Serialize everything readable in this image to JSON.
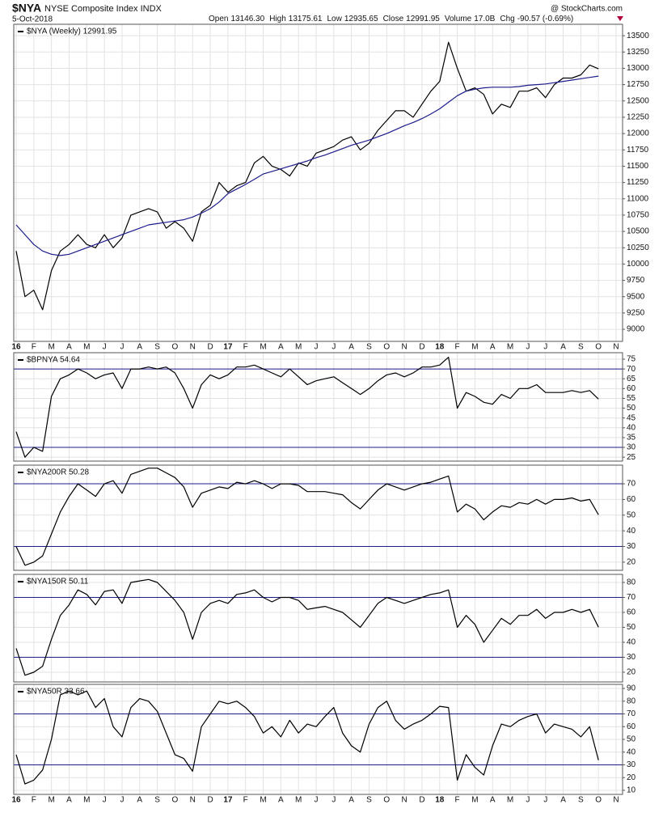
{
  "header": {
    "symbol": "$NYA",
    "name": "NYSE Composite Index INDX",
    "date": "5-Oct-2018",
    "source": "@ StockCharts.com",
    "quote": [
      {
        "label": "Open",
        "value": "13146.30"
      },
      {
        "label": "High",
        "value": "13175.61"
      },
      {
        "label": "Low",
        "value": "12935.65"
      },
      {
        "label": "Close",
        "value": "12991.95"
      },
      {
        "label": "Volume",
        "value": "17.0B"
      },
      {
        "label": "Chg",
        "value": "-90.57 (-0.69%)"
      }
    ]
  },
  "chart_data": [
    {
      "type": "line",
      "legend": "$NYA (Weekly) 12991.95",
      "categories": [
        "16",
        null,
        "F",
        null,
        "M",
        null,
        "A",
        null,
        "M",
        null,
        "J",
        null,
        "J",
        null,
        "A",
        null,
        "S",
        null,
        "O",
        null,
        "N",
        null,
        "D",
        null,
        "17",
        null,
        "F",
        null,
        "M",
        null,
        "A",
        null,
        "M",
        null,
        "J",
        null,
        "J",
        null,
        "A",
        null,
        "S",
        null,
        "O",
        null,
        "N",
        null,
        "D",
        null,
        "18",
        null,
        "F",
        null,
        "M",
        null,
        "A",
        null,
        "M",
        null,
        "J",
        null,
        "J",
        null,
        "A",
        null,
        "S",
        null,
        "O",
        null,
        "N"
      ],
      "ylim": [
        8815,
        13675
      ],
      "yticks": [
        9000,
        9250,
        9500,
        9750,
        10000,
        10250,
        10500,
        10750,
        11000,
        11250,
        11500,
        11750,
        12000,
        12250,
        12500,
        12750,
        13000,
        13250,
        13500
      ],
      "grid": true,
      "series": [
        {
          "color": "#000000",
          "values": [
            10200,
            9500,
            9600,
            9300,
            9900,
            10200,
            10300,
            10450,
            10300,
            10250,
            10450,
            10250,
            10400,
            10750,
            10800,
            10850,
            10800,
            10550,
            10650,
            10550,
            10350,
            10800,
            10900,
            11250,
            11100,
            11200,
            11250,
            11550,
            11650,
            11500,
            11450,
            11350,
            11550,
            11500,
            11700,
            11750,
            11800,
            11900,
            11950,
            11750,
            11850,
            12050,
            12200,
            12350,
            12350,
            12250,
            12450,
            12650,
            12800,
            13400,
            13000,
            12650,
            12700,
            12600,
            12300,
            12450,
            12400,
            12650,
            12650,
            12700,
            12550,
            12750,
            12850,
            12850,
            12900,
            13050,
            12992,
            null,
            null
          ]
        },
        {
          "color": "#1c1c8c",
          "values": [
            10600,
            10450,
            10300,
            10200,
            10150,
            10130,
            10150,
            10200,
            10250,
            10300,
            10350,
            10400,
            10450,
            10500,
            10550,
            10600,
            10620,
            10640,
            10660,
            10680,
            10720,
            10780,
            10850,
            10950,
            11080,
            11150,
            11220,
            11300,
            11380,
            11420,
            11460,
            11500,
            11540,
            11580,
            11630,
            11670,
            11720,
            11770,
            11820,
            11860,
            11900,
            11950,
            12000,
            12060,
            12120,
            12170,
            12230,
            12300,
            12380,
            12480,
            12580,
            12650,
            12680,
            12700,
            12710,
            12710,
            12710,
            12720,
            12740,
            12750,
            12760,
            12780,
            12800,
            12820,
            12840,
            12860,
            12880,
            null,
            null
          ]
        }
      ]
    },
    {
      "type": "line",
      "legend": "$BPNYA 54.64",
      "ylim": [
        23,
        78.3
      ],
      "yticks": [
        25,
        30,
        35,
        40,
        45,
        50,
        55,
        60,
        65,
        70,
        75
      ],
      "grid": true,
      "hlines": [
        30,
        70
      ],
      "hline_color": "#1c1c8c",
      "series": [
        {
          "color": "#000000",
          "values": [
            38,
            25,
            30,
            28,
            56,
            65,
            67,
            70,
            68,
            65,
            67,
            68,
            60,
            70,
            70,
            71,
            70,
            71,
            68,
            60,
            50,
            62,
            67,
            65,
            67,
            71,
            71,
            72,
            70,
            68,
            66,
            70,
            66,
            62,
            64,
            65,
            66,
            63,
            60,
            57,
            60,
            64,
            67,
            68,
            66,
            68,
            71,
            71,
            72,
            76,
            50,
            58,
            56,
            53,
            52,
            57,
            55,
            60,
            60,
            62,
            58,
            58,
            58,
            59,
            58,
            59,
            54.64,
            null,
            null
          ]
        }
      ]
    },
    {
      "type": "line",
      "legend": "$NYA200R 50.28",
      "ylim": [
        14.8,
        81.9
      ],
      "yticks": [
        20,
        30,
        40,
        50,
        60,
        70
      ],
      "grid": true,
      "hlines": [
        30,
        70
      ],
      "hline_color": "#1c1c8c",
      "series": [
        {
          "color": "#000000",
          "values": [
            30,
            18,
            20,
            24,
            38,
            52,
            62,
            70,
            66,
            62,
            70,
            72,
            64,
            76,
            78,
            80,
            80,
            77,
            74,
            68,
            55,
            64,
            66,
            68,
            67,
            71,
            70,
            72,
            70,
            67,
            70,
            70,
            69,
            65,
            65,
            65,
            64,
            63,
            58,
            54,
            60,
            66,
            70,
            68,
            66,
            68,
            70,
            71,
            73,
            75,
            52,
            57,
            54,
            47,
            52,
            56,
            55,
            58,
            57,
            60,
            57,
            60,
            60,
            61,
            59,
            60,
            50.28,
            null,
            null
          ]
        }
      ]
    },
    {
      "type": "line",
      "legend": "$NYA150R 50.11",
      "ylim": [
        13.5,
        85.4
      ],
      "yticks": [
        20,
        30,
        40,
        50,
        60,
        70,
        80
      ],
      "grid": true,
      "hlines": [
        30,
        70
      ],
      "hline_color": "#1c1c8c",
      "series": [
        {
          "color": "#000000",
          "values": [
            36,
            18,
            20,
            24,
            42,
            58,
            65,
            75,
            72,
            65,
            74,
            75,
            66,
            80,
            81,
            82,
            80,
            74,
            68,
            60,
            42,
            60,
            66,
            68,
            66,
            72,
            73,
            75,
            70,
            67,
            70,
            70,
            68,
            62,
            63,
            64,
            62,
            60,
            55,
            50,
            58,
            66,
            70,
            68,
            66,
            68,
            70,
            72,
            73,
            75,
            50,
            58,
            52,
            40,
            48,
            56,
            52,
            58,
            58,
            62,
            56,
            60,
            60,
            62,
            60,
            62,
            50.11,
            null,
            null
          ]
        }
      ]
    },
    {
      "type": "line",
      "legend": "$NYA50R 33.66",
      "categories": [
        "16",
        null,
        "F",
        null,
        "M",
        null,
        "A",
        null,
        "M",
        null,
        "J",
        null,
        "J",
        null,
        "A",
        null,
        "S",
        null,
        "O",
        null,
        "N",
        null,
        "D",
        null,
        "17",
        null,
        "F",
        null,
        "M",
        null,
        "A",
        null,
        "M",
        null,
        "J",
        null,
        "J",
        null,
        "A",
        null,
        "S",
        null,
        "O",
        null,
        "N",
        null,
        "D",
        null,
        "18",
        null,
        "F",
        null,
        "M",
        null,
        "A",
        null,
        "M",
        null,
        "J",
        null,
        "J",
        null,
        "A",
        null,
        "S",
        null,
        "O",
        null,
        "N"
      ],
      "ylim": [
        6.8,
        93.2
      ],
      "yticks": [
        10,
        20,
        30,
        40,
        50,
        60,
        70,
        80,
        90
      ],
      "grid": true,
      "hlines": [
        30,
        70
      ],
      "hline_color": "#1c1c8c",
      "series": [
        {
          "color": "#000000",
          "values": [
            38,
            15,
            18,
            26,
            50,
            85,
            88,
            85,
            88,
            75,
            82,
            60,
            52,
            75,
            82,
            80,
            72,
            55,
            38,
            35,
            25,
            60,
            70,
            80,
            78,
            80,
            75,
            68,
            55,
            60,
            52,
            65,
            55,
            62,
            60,
            68,
            75,
            55,
            45,
            40,
            62,
            75,
            80,
            65,
            58,
            62,
            65,
            70,
            76,
            75,
            18,
            38,
            28,
            22,
            45,
            62,
            60,
            65,
            68,
            70,
            55,
            62,
            60,
            58,
            52,
            60,
            33.66,
            null,
            null
          ]
        }
      ]
    }
  ]
}
